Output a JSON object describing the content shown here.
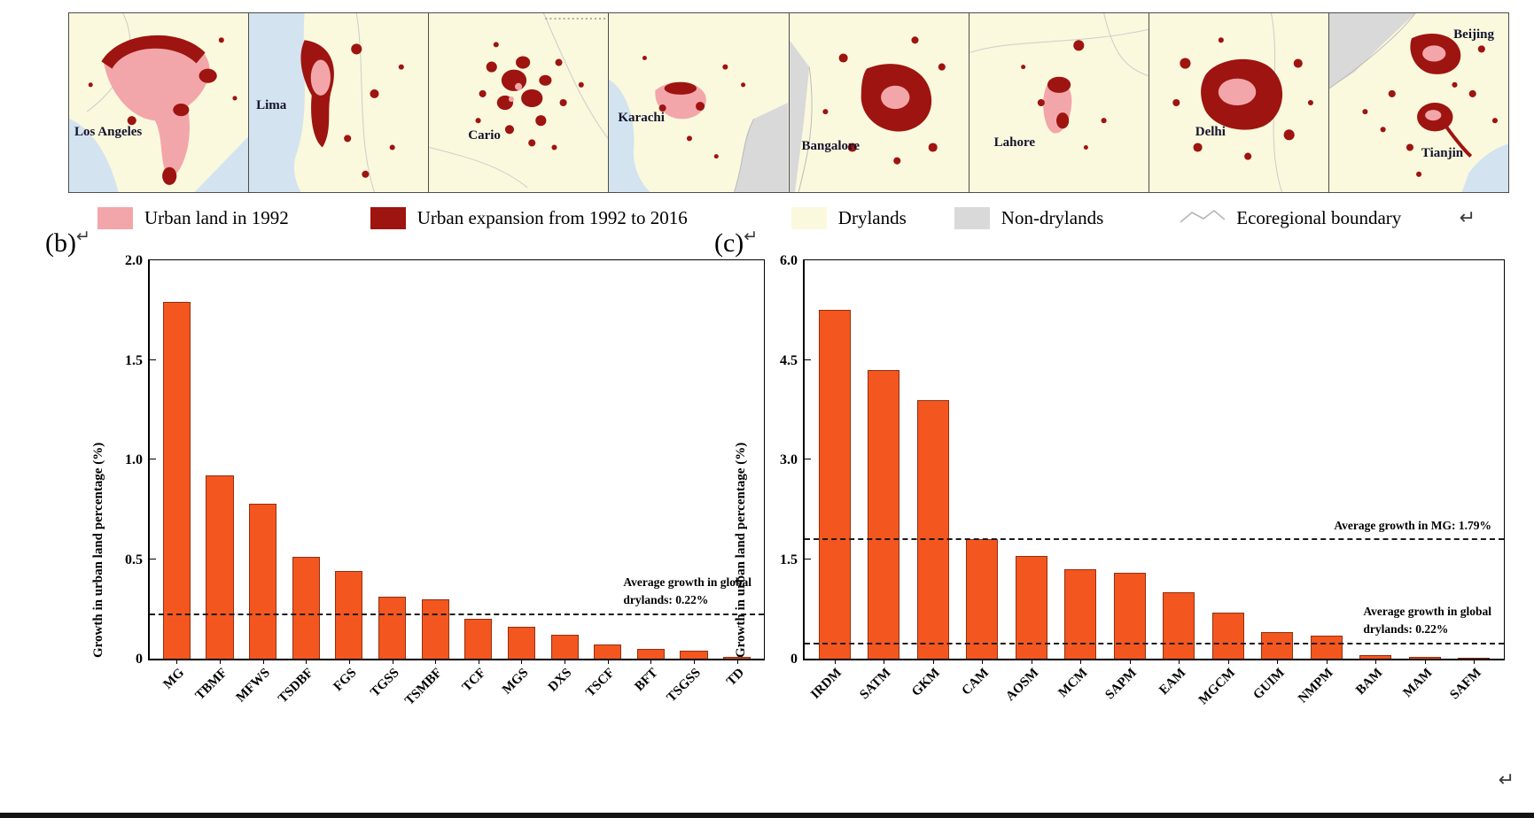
{
  "figure": {
    "return_mark": "↵"
  },
  "maps": {
    "labels": [
      "Los Angeles",
      "Lima",
      "Cario",
      "Karachi",
      "Bangalore",
      "Lahore",
      "Delhi",
      "Beijing",
      "Tianjin"
    ],
    "colors": {
      "drylands": "#fbf9dd",
      "water": "#d3e3ef",
      "non_drylands": "#d9d9d9",
      "urban_1992": "#f3a6aa",
      "urban_expansion": "#9e1410"
    }
  },
  "legend": {
    "items": [
      {
        "label": "Urban land in 1992",
        "color": "#f3a6aa",
        "symbol": "swatch"
      },
      {
        "label": "Urban expansion from 1992 to 2016",
        "color": "#9e1410",
        "symbol": "swatch"
      },
      {
        "label": "Drylands",
        "color": "#fbf9dd",
        "symbol": "swatch"
      },
      {
        "label": "Non-drylands",
        "color": "#d9d9d9",
        "symbol": "swatch"
      },
      {
        "label": "Ecoregional boundary",
        "color": "#b5b5b5",
        "symbol": "zigzag-line"
      }
    ]
  },
  "chart_data": [
    {
      "type": "bar",
      "panel_label": "(b)",
      "ylabel": "Growth in urban land percentage (%)",
      "ylim": [
        0,
        2.0
      ],
      "yticks": [
        {
          "value": 0,
          "label": "0"
        },
        {
          "value": 0.5,
          "label": "0.5"
        },
        {
          "value": 1.0,
          "label": "1.0"
        },
        {
          "value": 1.5,
          "label": "1.5"
        },
        {
          "value": 2.0,
          "label": "2.0"
        }
      ],
      "categories": [
        "MG",
        "TBMF",
        "MFWS",
        "TSDBF",
        "FGS",
        "TGSS",
        "TSMBF",
        "TCF",
        "MGS",
        "DXS",
        "TSCF",
        "BFT",
        "TSGSS",
        "TD"
      ],
      "values": [
        1.79,
        0.92,
        0.78,
        0.51,
        0.44,
        0.31,
        0.3,
        0.2,
        0.16,
        0.12,
        0.07,
        0.05,
        0.04,
        0.01
      ],
      "bar_color": "#f4561f",
      "grid": false,
      "legend_position": "none",
      "reference_lines": [
        {
          "value": 0.22,
          "label_lines": [
            "Average growth in global",
            "drylands: 0.22%"
          ]
        }
      ]
    },
    {
      "type": "bar",
      "panel_label": "(c)",
      "ylabel": "Growth in urban land percentage (%)",
      "ylim": [
        0,
        6.0
      ],
      "yticks": [
        {
          "value": 0,
          "label": "0"
        },
        {
          "value": 1.5,
          "label": "1.5"
        },
        {
          "value": 3.0,
          "label": "3.0"
        },
        {
          "value": 4.5,
          "label": "4.5"
        },
        {
          "value": 6.0,
          "label": "6.0"
        }
      ],
      "categories": [
        "IRDM",
        "SATM",
        "GKM",
        "CAM",
        "AOSM",
        "MCM",
        "SAPM",
        "EAM",
        "MGCM",
        "GUIM",
        "NMPM",
        "BAM",
        "MAM",
        "SAFM"
      ],
      "values": [
        5.25,
        4.35,
        3.9,
        1.8,
        1.55,
        1.35,
        1.3,
        1.0,
        0.7,
        0.4,
        0.35,
        0.05,
        0.03,
        0.02
      ],
      "bar_color": "#f4561f",
      "grid": false,
      "legend_position": "none",
      "reference_lines": [
        {
          "value": 1.79,
          "label_lines": [
            "Average growth in MG: 1.79%"
          ]
        },
        {
          "value": 0.22,
          "label_lines": [
            "Average growth in global",
            "drylands: 0.22%"
          ]
        }
      ]
    }
  ]
}
